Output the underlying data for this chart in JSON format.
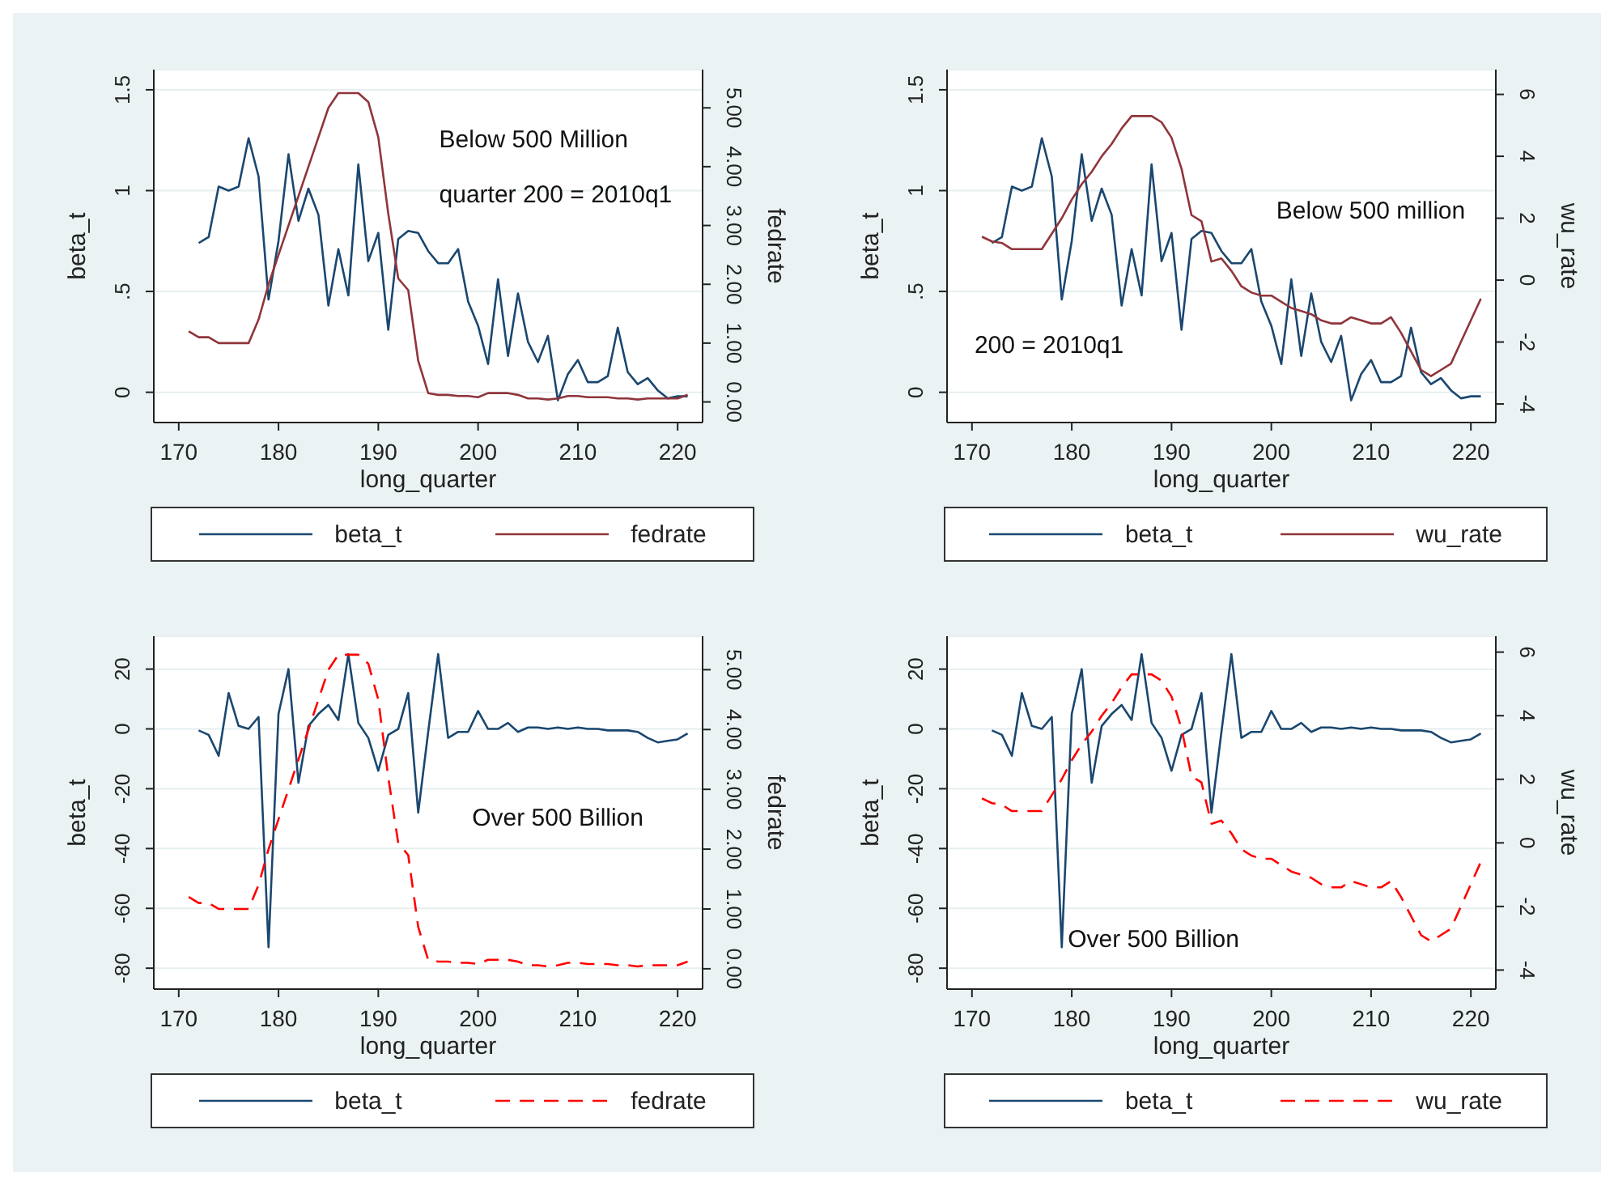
{
  "chart_data": [
    {
      "type": "line",
      "xlabel": "long_quarter",
      "ylabel": "beta_t",
      "y2label": "fedrate",
      "annotations": [
        "Below 500 Million",
        "quarter 200 = 2010q1"
      ],
      "xlim": [
        167.5,
        222.5
      ],
      "xticks": [
        170,
        180,
        190,
        200,
        210,
        220
      ],
      "ylim": [
        -0.15,
        1.6
      ],
      "yticks": [
        0,
        {
          "value": 0.5,
          "label": ".5"
        },
        1,
        1.5
      ],
      "y2lim": [
        -0.35,
        5.65
      ],
      "y2ticks": [
        {
          "value": 0,
          "label": "0.00"
        },
        {
          "value": 1,
          "label": "1.00"
        },
        {
          "value": 2,
          "label": "2.00"
        },
        {
          "value": 3,
          "label": "3.00"
        },
        {
          "value": 4,
          "label": "4.00"
        },
        {
          "value": 5,
          "label": "5.00"
        }
      ],
      "grid": "y",
      "legend": "bottom",
      "marker": "none",
      "series": [
        {
          "name": "beta_t",
          "color": "#1a476f",
          "line_style": "solid",
          "x": [
            172,
            173,
            174,
            175,
            176,
            177,
            178,
            179,
            180,
            181,
            182,
            183,
            184,
            185,
            186,
            187,
            188,
            189,
            190,
            191,
            192,
            193,
            194,
            195,
            196,
            197,
            198,
            199,
            200,
            201,
            202,
            203,
            204,
            205,
            206,
            207,
            208,
            209,
            210,
            211,
            212,
            213,
            214,
            215,
            216,
            217,
            218,
            219,
            220,
            221
          ],
          "values": [
            0.74,
            0.77,
            1.02,
            1.0,
            1.02,
            1.26,
            1.07,
            0.46,
            0.75,
            1.18,
            0.85,
            1.01,
            0.88,
            0.43,
            0.71,
            0.48,
            1.13,
            0.65,
            0.79,
            0.31,
            0.76,
            0.8,
            0.79,
            0.7,
            0.64,
            0.64,
            0.71,
            0.45,
            0.33,
            0.14,
            0.56,
            0.18,
            0.49,
            0.25,
            0.15,
            0.28,
            -0.04,
            0.09,
            0.16,
            0.05,
            0.05,
            0.08,
            0.32,
            0.1,
            0.04,
            0.07,
            0.01,
            -0.03,
            -0.02,
            -0.02
          ]
        },
        {
          "name": "fedrate",
          "color": "#90353b",
          "line_style": "solid",
          "axis": "y2",
          "x": [
            171,
            172,
            173,
            174,
            175,
            176,
            177,
            178,
            179,
            180,
            181,
            182,
            183,
            184,
            185,
            186,
            187,
            188,
            189,
            190,
            191,
            192,
            193,
            194,
            195,
            196,
            197,
            198,
            199,
            200,
            201,
            202,
            203,
            204,
            205,
            206,
            207,
            208,
            209,
            210,
            211,
            212,
            213,
            214,
            215,
            216,
            217,
            218,
            219,
            220,
            221
          ],
          "values": [
            1.2,
            1.1,
            1.1,
            1.0,
            1.0,
            1.0,
            1.0,
            1.4,
            2.0,
            2.5,
            3.0,
            3.5,
            4.0,
            4.5,
            5.0,
            5.25,
            5.25,
            5.25,
            5.1,
            4.5,
            3.2,
            2.1,
            1.9,
            0.7,
            0.15,
            0.12,
            0.12,
            0.1,
            0.1,
            0.08,
            0.15,
            0.15,
            0.15,
            0.12,
            0.06,
            0.06,
            0.04,
            0.06,
            0.1,
            0.1,
            0.08,
            0.08,
            0.08,
            0.06,
            0.06,
            0.04,
            0.06,
            0.06,
            0.06,
            0.06,
            0.12
          ]
        }
      ]
    },
    {
      "type": "line",
      "xlabel": "long_quarter",
      "ylabel": "beta_t",
      "y2label": "wu_rate",
      "annotations": [
        "Below 500 million",
        "200 = 2010q1"
      ],
      "xlim": [
        167.5,
        222.5
      ],
      "xticks": [
        170,
        180,
        190,
        200,
        210,
        220
      ],
      "ylim": [
        -0.15,
        1.6
      ],
      "yticks": [
        0,
        {
          "value": 0.5,
          "label": ".5"
        },
        1,
        1.5
      ],
      "y2lim": [
        -4.6,
        6.8
      ],
      "y2ticks": [
        -4,
        -2,
        0,
        2,
        4,
        6
      ],
      "grid": "y",
      "legend": "bottom",
      "marker": "none",
      "series": [
        {
          "name": "beta_t",
          "color": "#1a476f",
          "line_style": "solid",
          "x": [
            172,
            173,
            174,
            175,
            176,
            177,
            178,
            179,
            180,
            181,
            182,
            183,
            184,
            185,
            186,
            187,
            188,
            189,
            190,
            191,
            192,
            193,
            194,
            195,
            196,
            197,
            198,
            199,
            200,
            201,
            202,
            203,
            204,
            205,
            206,
            207,
            208,
            209,
            210,
            211,
            212,
            213,
            214,
            215,
            216,
            217,
            218,
            219,
            220,
            221
          ],
          "values": [
            0.74,
            0.77,
            1.02,
            1.0,
            1.02,
            1.26,
            1.07,
            0.46,
            0.75,
            1.18,
            0.85,
            1.01,
            0.88,
            0.43,
            0.71,
            0.48,
            1.13,
            0.65,
            0.79,
            0.31,
            0.76,
            0.8,
            0.79,
            0.7,
            0.64,
            0.64,
            0.71,
            0.45,
            0.33,
            0.14,
            0.56,
            0.18,
            0.49,
            0.25,
            0.15,
            0.28,
            -0.04,
            0.09,
            0.16,
            0.05,
            0.05,
            0.08,
            0.32,
            0.1,
            0.04,
            0.07,
            0.01,
            -0.03,
            -0.02,
            -0.02
          ]
        },
        {
          "name": "wu_rate",
          "color": "#90353b",
          "line_style": "solid",
          "axis": "y2",
          "x": [
            171,
            172,
            173,
            174,
            175,
            176,
            177,
            178,
            179,
            180,
            181,
            182,
            183,
            184,
            185,
            186,
            187,
            188,
            189,
            190,
            191,
            192,
            193,
            194,
            195,
            196,
            197,
            198,
            199,
            200,
            201,
            202,
            203,
            204,
            205,
            206,
            207,
            208,
            209,
            210,
            211,
            212,
            213,
            214,
            215,
            216,
            217,
            218,
            219,
            220,
            221
          ],
          "values": [
            1.4,
            1.25,
            1.2,
            1.0,
            1.0,
            1.0,
            1.0,
            1.5,
            2.0,
            2.6,
            3.1,
            3.5,
            4.0,
            4.4,
            4.9,
            5.3,
            5.3,
            5.3,
            5.1,
            4.6,
            3.6,
            2.1,
            1.9,
            0.6,
            0.7,
            0.3,
            -0.2,
            -0.4,
            -0.5,
            -0.5,
            -0.7,
            -0.9,
            -1.0,
            -1.1,
            -1.3,
            -1.4,
            -1.4,
            -1.2,
            -1.3,
            -1.4,
            -1.4,
            -1.2,
            -1.7,
            -2.3,
            -2.9,
            -3.1,
            -2.9,
            -2.7,
            -2.0,
            -1.3,
            -0.6
          ]
        }
      ]
    },
    {
      "type": "line",
      "xlabel": "long_quarter",
      "ylabel": "beta_t",
      "y2label": "fedrate",
      "annotations": [
        "Over 500 Billion"
      ],
      "xlim": [
        167.5,
        222.5
      ],
      "xticks": [
        170,
        180,
        190,
        200,
        210,
        220
      ],
      "ylim": [
        -87,
        31
      ],
      "yticks": [
        -80,
        -60,
        -40,
        -20,
        0,
        20
      ],
      "y2lim": [
        -0.34,
        5.56
      ],
      "y2ticks": [
        {
          "value": 0,
          "label": "0.00"
        },
        {
          "value": 1,
          "label": "1.00"
        },
        {
          "value": 2,
          "label": "2.00"
        },
        {
          "value": 3,
          "label": "3.00"
        },
        {
          "value": 4,
          "label": "4.00"
        },
        {
          "value": 5,
          "label": "5.00"
        }
      ],
      "grid": "y",
      "legend": "bottom",
      "marker": "none",
      "series": [
        {
          "name": "beta_t",
          "color": "#1a476f",
          "line_style": "solid",
          "x": [
            172,
            173,
            174,
            175,
            176,
            177,
            178,
            179,
            180,
            181,
            182,
            183,
            184,
            185,
            186,
            187,
            188,
            189,
            190,
            191,
            192,
            193,
            194,
            195,
            196,
            197,
            198,
            199,
            200,
            201,
            202,
            203,
            204,
            205,
            206,
            207,
            208,
            209,
            210,
            211,
            212,
            213,
            214,
            215,
            216,
            217,
            218,
            219,
            220,
            221
          ],
          "values": [
            -0.5,
            -2,
            -9,
            12,
            1,
            0,
            4,
            -73,
            5,
            20,
            -18,
            1,
            5,
            8,
            3,
            25,
            2,
            -3,
            -14,
            -2,
            0,
            12,
            -28,
            -1,
            25,
            -3,
            -1,
            -1,
            6,
            0,
            0,
            2,
            -1,
            0.5,
            0.5,
            0,
            0.5,
            0,
            0.5,
            0,
            0,
            -0.5,
            -0.5,
            -0.5,
            -1,
            -3,
            -4.5,
            -4,
            -3.5,
            -1.5
          ]
        },
        {
          "name": "fedrate",
          "color": "#ff0000",
          "line_style": "dashed",
          "axis": "y2",
          "x": [
            171,
            172,
            173,
            174,
            175,
            176,
            177,
            178,
            179,
            180,
            181,
            182,
            183,
            184,
            185,
            186,
            187,
            188,
            189,
            190,
            191,
            192,
            193,
            194,
            195,
            196,
            197,
            198,
            199,
            200,
            201,
            202,
            203,
            204,
            205,
            206,
            207,
            208,
            209,
            210,
            211,
            212,
            213,
            214,
            215,
            216,
            217,
            218,
            219,
            220,
            221
          ],
          "values": [
            1.2,
            1.1,
            1.1,
            1.0,
            1.0,
            1.0,
            1.0,
            1.4,
            2.0,
            2.5,
            3.0,
            3.5,
            4.0,
            4.5,
            5.0,
            5.25,
            5.25,
            5.25,
            5.1,
            4.5,
            3.2,
            2.1,
            1.9,
            0.7,
            0.15,
            0.12,
            0.12,
            0.1,
            0.1,
            0.08,
            0.15,
            0.15,
            0.15,
            0.12,
            0.06,
            0.06,
            0.04,
            0.06,
            0.1,
            0.1,
            0.08,
            0.08,
            0.08,
            0.06,
            0.06,
            0.04,
            0.06,
            0.06,
            0.06,
            0.06,
            0.12
          ]
        }
      ]
    },
    {
      "type": "line",
      "xlabel": "long_quarter",
      "ylabel": "beta_t",
      "y2label": "wu_rate",
      "annotations": [
        "Over 500 Billion"
      ],
      "xlim": [
        167.5,
        222.5
      ],
      "xticks": [
        170,
        180,
        190,
        200,
        210,
        220
      ],
      "ylim": [
        -87,
        31
      ],
      "yticks": [
        -80,
        -60,
        -40,
        -20,
        0,
        20
      ],
      "y2lim": [
        -4.6,
        6.5
      ],
      "y2ticks": [
        -4,
        -2,
        0,
        2,
        4,
        6
      ],
      "grid": "y",
      "legend": "bottom",
      "marker": "none",
      "series": [
        {
          "name": "beta_t",
          "color": "#1a476f",
          "line_style": "solid",
          "x": [
            172,
            173,
            174,
            175,
            176,
            177,
            178,
            179,
            180,
            181,
            182,
            183,
            184,
            185,
            186,
            187,
            188,
            189,
            190,
            191,
            192,
            193,
            194,
            195,
            196,
            197,
            198,
            199,
            200,
            201,
            202,
            203,
            204,
            205,
            206,
            207,
            208,
            209,
            210,
            211,
            212,
            213,
            214,
            215,
            216,
            217,
            218,
            219,
            220,
            221
          ],
          "values": [
            -0.5,
            -2,
            -9,
            12,
            1,
            0,
            4,
            -73,
            5,
            20,
            -18,
            1,
            5,
            8,
            3,
            25,
            2,
            -3,
            -14,
            -2,
            0,
            12,
            -28,
            -1,
            25,
            -3,
            -1,
            -1,
            6,
            0,
            0,
            2,
            -1,
            0.5,
            0.5,
            0,
            0.5,
            0,
            0.5,
            0,
            0,
            -0.5,
            -0.5,
            -0.5,
            -1,
            -3,
            -4.5,
            -4,
            -3.5,
            -1.5
          ]
        },
        {
          "name": "wu_rate",
          "color": "#ff0000",
          "line_style": "dashed",
          "axis": "y2",
          "x": [
            171,
            172,
            173,
            174,
            175,
            176,
            177,
            178,
            179,
            180,
            181,
            182,
            183,
            184,
            185,
            186,
            187,
            188,
            189,
            190,
            191,
            192,
            193,
            194,
            195,
            196,
            197,
            198,
            199,
            200,
            201,
            202,
            203,
            204,
            205,
            206,
            207,
            208,
            209,
            210,
            211,
            212,
            213,
            214,
            215,
            216,
            217,
            218,
            219,
            220,
            221
          ],
          "values": [
            1.4,
            1.25,
            1.2,
            1.0,
            1.0,
            1.0,
            1.0,
            1.5,
            2.0,
            2.6,
            3.1,
            3.5,
            4.0,
            4.4,
            4.9,
            5.3,
            5.3,
            5.3,
            5.1,
            4.6,
            3.6,
            2.1,
            1.9,
            0.6,
            0.7,
            0.3,
            -0.2,
            -0.4,
            -0.5,
            -0.5,
            -0.7,
            -0.9,
            -1.0,
            -1.1,
            -1.3,
            -1.4,
            -1.4,
            -1.2,
            -1.3,
            -1.4,
            -1.4,
            -1.2,
            -1.7,
            -2.3,
            -2.9,
            -3.1,
            -2.9,
            -2.7,
            -2.0,
            -1.3,
            -0.6
          ]
        }
      ]
    }
  ]
}
